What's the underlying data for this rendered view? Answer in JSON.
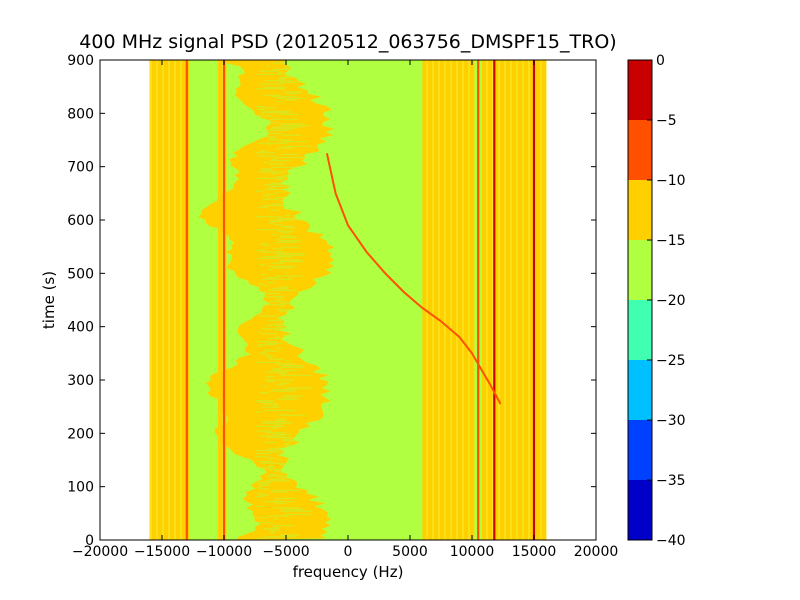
{
  "chart_data": [
    {
      "type": "heatmap",
      "title": "400 MHz signal PSD (20120512_063756_DMSPF15_TRO)",
      "xlabel": "frequency (Hz)",
      "ylabel": "time (s)",
      "xlim": [
        -20000,
        20000
      ],
      "ylim": [
        0,
        900
      ],
      "x_ticks": [
        -20000,
        -15000,
        -10000,
        -5000,
        0,
        5000,
        10000,
        15000,
        20000
      ],
      "x_tick_labels": [
        "−20000",
        "−15000",
        "−10000",
        "−5000",
        "0",
        "5000",
        "10000",
        "15000",
        "20000"
      ],
      "y_ticks": [
        0,
        100,
        200,
        300,
        400,
        500,
        600,
        700,
        800,
        900
      ],
      "y_tick_labels": [
        "0",
        "100",
        "200",
        "300",
        "400",
        "500",
        "600",
        "700",
        "800",
        "900"
      ],
      "data_extent_x": [
        -16000,
        16000
      ],
      "background_level_range": [
        -20,
        -15
      ],
      "bands": [
        {
          "x": [
            -16000,
            -12800
          ],
          "level_range": [
            -15,
            -10
          ]
        },
        {
          "x": [
            -10500,
            -9800
          ],
          "level_range": [
            -15,
            -10
          ]
        },
        {
          "x": [
            6000,
            10200
          ],
          "level_range": [
            -15,
            -10
          ]
        },
        {
          "x": [
            10800,
            16000
          ],
          "level_range": [
            -15,
            -10
          ]
        }
      ],
      "vertical_lines": [
        {
          "x": -13000,
          "level_range": [
            -10,
            -5
          ]
        },
        {
          "x": -10000,
          "level_range": [
            -10,
            -5
          ]
        },
        {
          "x": 10500,
          "level_range": [
            -10,
            -5
          ]
        },
        {
          "x": 11800,
          "level_range": [
            -5,
            0
          ]
        },
        {
          "x": 15000,
          "level_range": [
            -5,
            0
          ]
        }
      ],
      "signal_trace": {
        "level_range": [
          -10,
          -5
        ],
        "points": [
          [
            -1700,
            725
          ],
          [
            -1000,
            650
          ],
          [
            0,
            590
          ],
          [
            1500,
            540
          ],
          [
            3000,
            500
          ],
          [
            4500,
            465
          ],
          [
            6000,
            435
          ],
          [
            7500,
            410
          ],
          [
            9000,
            380
          ],
          [
            10000,
            350
          ],
          [
            11000,
            310
          ],
          [
            11500,
            290
          ],
          [
            12300,
            255
          ]
        ]
      },
      "colorbar": {
        "levels": [
          -40,
          -35,
          -30,
          -25,
          -20,
          -15,
          -10,
          -5,
          0
        ],
        "tick_labels": [
          "−40",
          "−35",
          "−30",
          "−25",
          "−20",
          "−15",
          "−10",
          "−5",
          "0"
        ],
        "colors": [
          "#0000c8",
          "#0040ff",
          "#00c0ff",
          "#40ffb0",
          "#b0ff40",
          "#ffd000",
          "#ff5000",
          "#c80000"
        ]
      }
    }
  ]
}
